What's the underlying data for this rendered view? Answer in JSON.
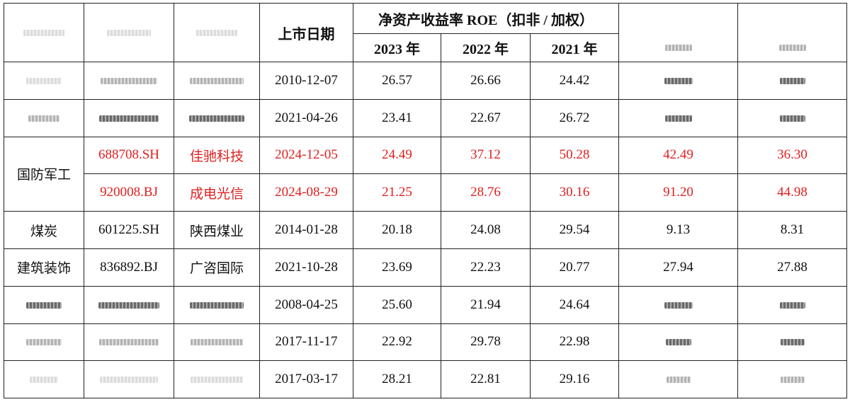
{
  "table": {
    "header": {
      "listing_date": "上市日期",
      "roe_group": "净资产收益率 ROE（扣非 / 加权）",
      "years": [
        "2023 年",
        "2022 年",
        "2021 年"
      ]
    },
    "rows": [
      {
        "industry": null,
        "code": null,
        "name": null,
        "date": "2010-12-07",
        "roe2023": "26.57",
        "roe2022": "26.66",
        "roe2021": "24.42",
        "col8": null,
        "col9": null,
        "highlight": false
      },
      {
        "industry": null,
        "code": null,
        "name": null,
        "date": "2021-04-26",
        "roe2023": "23.41",
        "roe2022": "22.67",
        "roe2021": "26.72",
        "col8": null,
        "col9": null,
        "highlight": false
      },
      {
        "industry": "国防军工",
        "code": "688708.SH",
        "name": "佳驰科技",
        "date": "2024-12-05",
        "roe2023": "24.49",
        "roe2022": "37.12",
        "roe2021": "50.28",
        "col8": "42.49",
        "col9": "36.30",
        "highlight": true
      },
      {
        "industry": "国防军工",
        "code": "920008.BJ",
        "name": "成电光信",
        "date": "2024-08-29",
        "roe2023": "21.25",
        "roe2022": "28.76",
        "roe2021": "30.16",
        "col8": "91.20",
        "col9": "44.98",
        "highlight": true
      },
      {
        "industry": "煤炭",
        "code": "601225.SH",
        "name": "陕西煤业",
        "date": "2014-01-28",
        "roe2023": "20.18",
        "roe2022": "24.08",
        "roe2021": "29.54",
        "col8": "9.13",
        "col9": "8.31",
        "highlight": false
      },
      {
        "industry": "建筑装饰",
        "code": "836892.BJ",
        "name": "广咨国际",
        "date": "2021-10-28",
        "roe2023": "23.69",
        "roe2022": "22.23",
        "roe2021": "20.77",
        "col8": "27.94",
        "col9": "27.88",
        "highlight": false
      },
      {
        "industry": null,
        "code": null,
        "name": null,
        "date": "2008-04-25",
        "roe2023": "25.60",
        "roe2022": "21.94",
        "roe2021": "24.64",
        "col8": null,
        "col9": null,
        "highlight": false
      },
      {
        "industry": null,
        "code": null,
        "name": null,
        "date": "2017-11-17",
        "roe2023": "22.92",
        "roe2022": "29.78",
        "roe2021": "22.98",
        "col8": null,
        "col9": null,
        "highlight": false
      },
      {
        "industry": null,
        "code": null,
        "name": null,
        "date": "2017-03-17",
        "roe2023": "28.21",
        "roe2022": "22.81",
        "roe2021": "29.16",
        "col8": null,
        "col9": null,
        "highlight": false
      }
    ]
  },
  "colors": {
    "highlight": "#e02020",
    "text": "#111111",
    "border": "#222222"
  }
}
